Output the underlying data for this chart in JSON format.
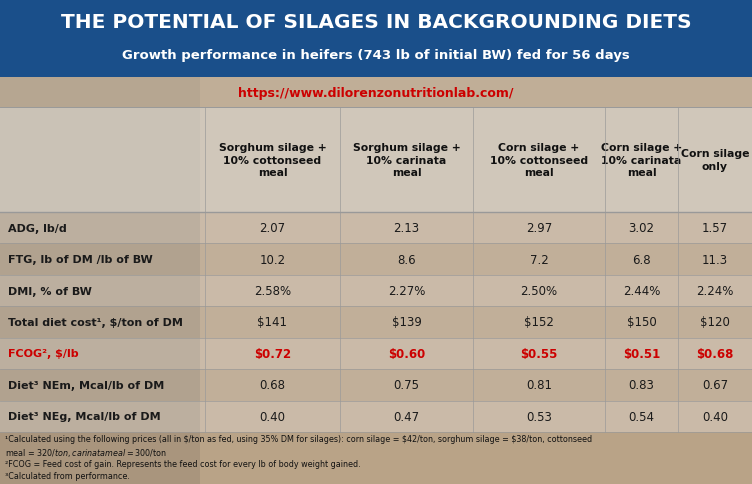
{
  "title": "THE POTENTIAL OF SILAGES IN BACKGROUNDING DIETS",
  "subtitle": "Growth performance in heifers (743 lb of initial BW) fed for 56 days",
  "url": "https://www.dilorenzonutritionlab.com/",
  "title_bg_color": "#1a4f8a",
  "title_text_color": "#ffffff",
  "url_color": "#cc0000",
  "col_headers": [
    "Sorghum silage +\n10% cottonseed\nmeal",
    "Sorghum silage +\n10% carinata\nmeal",
    "Corn silage +\n10% cottonseed\nmeal",
    "Corn silage +\n10% carinata\nmeal",
    "Corn silage\nonly"
  ],
  "row_labels": [
    "ADG, lb/d",
    "FTG, lb of DM /lb of BW",
    "DMI, % of BW",
    "Total diet cost¹, $/ton of DM",
    "FCOG², $/lb",
    "Diet³ NEm, Mcal/lb of DM",
    "Diet³ NEg, Mcal/lb of DM"
  ],
  "fcog_row_index": 4,
  "data": [
    [
      "2.07",
      "2.13",
      "2.97",
      "3.02",
      "1.57"
    ],
    [
      "10.2",
      "8.6",
      "7.2",
      "6.8",
      "11.3"
    ],
    [
      "2.58%",
      "2.27%",
      "2.50%",
      "2.44%",
      "2.24%"
    ],
    [
      "$141",
      "$139",
      "$152",
      "$150",
      "$120"
    ],
    [
      "$0.72",
      "$0.60",
      "$0.55",
      "$0.51",
      "$0.68"
    ],
    [
      "0.68",
      "0.75",
      "0.81",
      "0.83",
      "0.67"
    ],
    [
      "0.40",
      "0.47",
      "0.53",
      "0.54",
      "0.40"
    ]
  ],
  "footnote1": "¹Calculated using the following prices (all in $/ton as fed, using 35% DM for silages): corn silage = $42/ton, sorghum silage = $38/ton, cottonseed",
  "footnote2": "meal = $320/ton, carinata meal = $300/ton",
  "footnote3": "²FCOG = Feed cost of gain. Represents the feed cost for every lb of body weight gained.",
  "footnote4": "³Calculated from performance.",
  "fcog_color": "#cc0000",
  "normal_text_color": "#1a1a1a",
  "grid_color": "#999999",
  "bg_color": "#9b7d5a",
  "table_overlay_color": [
    0.85,
    0.82,
    0.78,
    0.65
  ],
  "header_overlay_color": [
    0.88,
    0.86,
    0.84,
    0.72
  ]
}
